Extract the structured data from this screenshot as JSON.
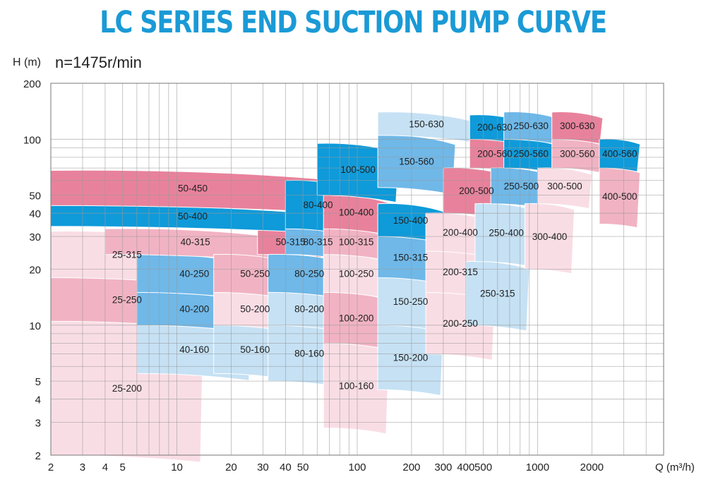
{
  "title": "LC SERIES END SUCTION PUMP CURVE",
  "ylabel": "H (m)",
  "speed": "n=1475r/min",
  "xlabel": "Q (m³/h)",
  "colors": {
    "title": "#1a9ad6",
    "deep_pink": "#e8829c",
    "mid_pink": "#f1b3c3",
    "light_pink": "#f9dde5",
    "deep_blue": "#0f9ad9",
    "mid_blue": "#6fb8e8",
    "light_blue": "#c6e1f4",
    "grid": "#9a9a9a"
  },
  "chart_data": {
    "type": "area",
    "title": "LC SERIES END SUCTION PUMP CURVE",
    "xlabel": "Q (m³/h)",
    "ylabel": "H (m)",
    "xscale": "log",
    "yscale": "log",
    "xlim": [
      2,
      5000
    ],
    "ylim": [
      2,
      200
    ],
    "grid": true,
    "x_ticks": [
      2,
      3,
      4,
      5,
      10,
      20,
      30,
      40,
      50,
      100,
      200,
      300,
      400,
      500,
      1000,
      2000
    ],
    "y_ticks": [
      2,
      3,
      4,
      5,
      10,
      20,
      30,
      40,
      50,
      100,
      200
    ],
    "zones": [
      {
        "model": "25-200",
        "q": [
          2,
          14
        ],
        "h": [
          2.0,
          10.5
        ],
        "color": "light_pink"
      },
      {
        "model": "25-250",
        "q": [
          2,
          14
        ],
        "h": [
          10.5,
          18
        ],
        "color": "mid_pink"
      },
      {
        "model": "25-315",
        "q": [
          2,
          14
        ],
        "h": [
          18,
          32
        ],
        "color": "light_pink"
      },
      {
        "model": "40-160",
        "q": [
          6,
          26
        ],
        "h": [
          5.5,
          10
        ],
        "color": "light_blue"
      },
      {
        "model": "40-200",
        "q": [
          6,
          26
        ],
        "h": [
          10,
          15
        ],
        "color": "mid_blue"
      },
      {
        "model": "40-250",
        "q": [
          6,
          26
        ],
        "h": [
          15,
          24
        ],
        "color": "mid_blue"
      },
      {
        "model": "40-315",
        "q": [
          4,
          40
        ],
        "h": [
          24,
          33
        ],
        "color": "mid_pink"
      },
      {
        "model": "50-160",
        "q": [
          16,
          46
        ],
        "h": [
          5.5,
          10
        ],
        "color": "light_blue"
      },
      {
        "model": "50-200",
        "q": [
          16,
          46
        ],
        "h": [
          10,
          15
        ],
        "color": "light_pink"
      },
      {
        "model": "50-250",
        "q": [
          16,
          46
        ],
        "h": [
          15,
          24
        ],
        "color": "mid_pink"
      },
      {
        "model": "50-315",
        "q": [
          28,
          65
        ],
        "h": [
          24,
          33
        ],
        "color": "deep_pink"
      },
      {
        "model": "50-400",
        "q": [
          2,
          75
        ],
        "h": [
          34,
          44
        ],
        "color": "deep_blue"
      },
      {
        "model": "50-450",
        "q": [
          2,
          75
        ],
        "h": [
          44,
          68
        ],
        "color": "deep_pink"
      },
      {
        "model": "80-160",
        "q": [
          32,
          92
        ],
        "h": [
          5,
          10
        ],
        "color": "light_blue"
      },
      {
        "model": "80-200",
        "q": [
          32,
          92
        ],
        "h": [
          10,
          15
        ],
        "color": "light_blue"
      },
      {
        "model": "80-250",
        "q": [
          32,
          92
        ],
        "h": [
          15,
          24
        ],
        "color": "mid_blue"
      },
      {
        "model": "80-315",
        "q": [
          40,
          92
        ],
        "h": [
          24,
          33
        ],
        "color": "mid_blue"
      },
      {
        "model": "80-400",
        "q": [
          40,
          92
        ],
        "h": [
          33,
          60
        ],
        "color": "deep_blue"
      },
      {
        "model": "100-160",
        "q": [
          65,
          150
        ],
        "h": [
          2.8,
          8
        ],
        "color": "light_pink"
      },
      {
        "model": "100-200",
        "q": [
          65,
          150
        ],
        "h": [
          8,
          15
        ],
        "color": "mid_pink"
      },
      {
        "model": "100-250",
        "q": [
          65,
          150
        ],
        "h": [
          15,
          24
        ],
        "color": "light_pink"
      },
      {
        "model": "100-315",
        "q": [
          65,
          150
        ],
        "h": [
          24,
          33
        ],
        "color": "mid_pink"
      },
      {
        "model": "100-400",
        "q": [
          65,
          150
        ],
        "h": [
          33,
          50
        ],
        "color": "deep_pink"
      },
      {
        "model": "100-500",
        "q": [
          60,
          170
        ],
        "h": [
          50,
          95
        ],
        "color": "deep_blue"
      },
      {
        "model": "150-200",
        "q": [
          130,
          300
        ],
        "h": [
          4.5,
          10
        ],
        "color": "light_blue"
      },
      {
        "model": "150-250",
        "q": [
          130,
          300
        ],
        "h": [
          10,
          18
        ],
        "color": "light_blue"
      },
      {
        "model": "150-315",
        "q": [
          130,
          300
        ],
        "h": [
          18,
          30
        ],
        "color": "mid_blue"
      },
      {
        "model": "150-400",
        "q": [
          130,
          300
        ],
        "h": [
          30,
          45
        ],
        "color": "deep_blue"
      },
      {
        "model": "150-560",
        "q": [
          130,
          350
        ],
        "h": [
          55,
          105
        ],
        "color": "mid_blue"
      },
      {
        "model": "150-630",
        "q": [
          130,
          450
        ],
        "h": [
          105,
          140
        ],
        "color": "light_blue"
      },
      {
        "model": "200-250",
        "q": [
          240,
          580
        ],
        "h": [
          7,
          15
        ],
        "color": "light_pink"
      },
      {
        "model": "200-315",
        "q": [
          240,
          580
        ],
        "h": [
          15,
          25
        ],
        "color": "light_pink"
      },
      {
        "model": "200-400",
        "q": [
          240,
          580
        ],
        "h": [
          25,
          40
        ],
        "color": "light_pink"
      },
      {
        "model": "200-500",
        "q": [
          300,
          700
        ],
        "h": [
          40,
          70
        ],
        "color": "deep_pink"
      },
      {
        "model": "200-560",
        "q": [
          420,
          800
        ],
        "h": [
          70,
          100
        ],
        "color": "deep_pink"
      },
      {
        "model": "200-630",
        "q": [
          420,
          800
        ],
        "h": [
          100,
          135
        ],
        "color": "deep_blue"
      },
      {
        "model": "250-315",
        "q": [
          400,
          900
        ],
        "h": [
          10,
          22
        ],
        "color": "light_blue"
      },
      {
        "model": "250-400",
        "q": [
          450,
          1000
        ],
        "h": [
          22,
          45
        ],
        "color": "light_blue"
      },
      {
        "model": "250-500",
        "q": [
          550,
          1200
        ],
        "h": [
          45,
          70
        ],
        "color": "mid_blue"
      },
      {
        "model": "250-560",
        "q": [
          650,
          1300
        ],
        "h": [
          70,
          100
        ],
        "color": "deep_blue"
      },
      {
        "model": "250-630",
        "q": [
          650,
          1300
        ],
        "h": [
          100,
          140
        ],
        "color": "mid_blue"
      },
      {
        "model": "300-400",
        "q": [
          850,
          1600
        ],
        "h": [
          20,
          45
        ],
        "color": "light_pink"
      },
      {
        "model": "300-500",
        "q": [
          1000,
          2000
        ],
        "h": [
          45,
          70
        ],
        "color": "light_pink"
      },
      {
        "model": "300-560",
        "q": [
          1200,
          2300
        ],
        "h": [
          70,
          100
        ],
        "color": "mid_pink"
      },
      {
        "model": "300-630",
        "q": [
          1200,
          2300
        ],
        "h": [
          100,
          140
        ],
        "color": "deep_pink"
      },
      {
        "model": "400-500",
        "q": [
          2200,
          3700
        ],
        "h": [
          35,
          70
        ],
        "color": "mid_pink"
      },
      {
        "model": "400-560",
        "q": [
          2200,
          3700
        ],
        "h": [
          70,
          100
        ],
        "color": "deep_blue"
      }
    ]
  }
}
